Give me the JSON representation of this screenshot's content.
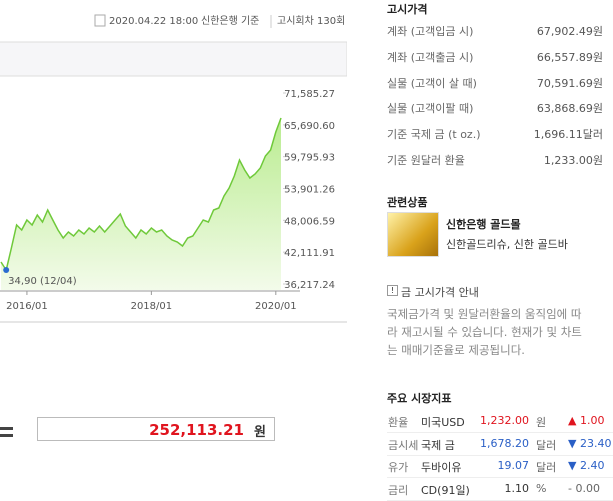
{
  "header": {
    "date": "2020.04.22 18:00",
    "basis": "신한은행 기준",
    "round": "고시회차 130회"
  },
  "chart_data": {
    "type": "line",
    "color": "#6fc93a",
    "annotation": "34,90 (12/04)",
    "categories": [
      null,
      null,
      null,
      null,
      null,
      "2016/01",
      null,
      null,
      null,
      null,
      null,
      null,
      null,
      null,
      null,
      null,
      null,
      null,
      null,
      null,
      null,
      null,
      null,
      null,
      null,
      null,
      null,
      null,
      null,
      "2018/01",
      null,
      null,
      null,
      null,
      null,
      null,
      null,
      null,
      null,
      null,
      null,
      null,
      null,
      null,
      null,
      null,
      null,
      null,
      null,
      null,
      null,
      null,
      null,
      "2020/01",
      null
    ],
    "values": [
      40290,
      38800,
      42880,
      47140,
      46210,
      48060,
      47140,
      48990,
      47700,
      49920,
      48060,
      46210,
      44730,
      45840,
      45100,
      46210,
      45470,
      46580,
      45840,
      46950,
      45840,
      46950,
      48060,
      49180,
      46950,
      45840,
      44730,
      46210,
      45470,
      46580,
      45840,
      46210,
      45100,
      44360,
      43990,
      43250,
      44730,
      45100,
      46580,
      48060,
      47700,
      49920,
      50290,
      52510,
      53990,
      56210,
      59180,
      57330,
      55840,
      56590,
      57700,
      59920,
      61030,
      64360,
      66960
    ],
    "ylim": [
      35106,
      73067
    ],
    "yticks": [
      {
        "value": 36217.24,
        "label": "36,217.24"
      },
      {
        "value": 42111.91,
        "label": "42,111.91"
      },
      {
        "value": 48006.59,
        "label": "48,006.59"
      },
      {
        "value": 53901.26,
        "label": "53,901.26"
      },
      {
        "value": 59795.93,
        "label": "59,795.93"
      },
      {
        "value": 65690.6,
        "label": "65,690.60"
      },
      {
        "value": 71585.27,
        "label": "71,585.27"
      }
    ]
  },
  "calc": {
    "result": "252,113.21",
    "unit": "원"
  },
  "prices": {
    "title": "고시가격",
    "rows": [
      [
        "계좌 (고객입금 시)",
        "67,902.49원"
      ],
      [
        "계좌 (고객출금 시)",
        "66,557.89원"
      ],
      [
        "실물 (고객이 살 때)",
        "70,591.69원"
      ],
      [
        "실물 (고객이팔 때)",
        "63,868.69원"
      ],
      [
        "기준 국제 금 (t oz.)",
        "1,696.11달러"
      ],
      [
        "기준 원달러 환율",
        "1,233.00원"
      ]
    ]
  },
  "related": {
    "title": "관련상품",
    "name": "신한은행 골드몰",
    "desc": "신한골드리슈, 신한 골드바"
  },
  "notice": {
    "title": "금 고시가격 안내",
    "lines": [
      "국제금가격 및 원달러환율의 움직임에 따",
      "라 재고시될 수 있습니다. 현재가 및 차트",
      "는 매매기준율로 제공됩니다."
    ]
  },
  "market": {
    "title": "주요 시장지표",
    "rows": [
      [
        "환율",
        "미국USD",
        "1,232.00",
        "원",
        "▲ 1.00"
      ],
      [
        "금시세",
        "국제 금",
        "1,678.20",
        "달러",
        "▼ 23.40"
      ],
      [
        "유가",
        "두바이유",
        "19.07",
        "달러",
        "▼ 2.40"
      ],
      [
        "금리",
        "CD(91일)",
        "1.10",
        "%",
        "- 0.00"
      ]
    ]
  }
}
